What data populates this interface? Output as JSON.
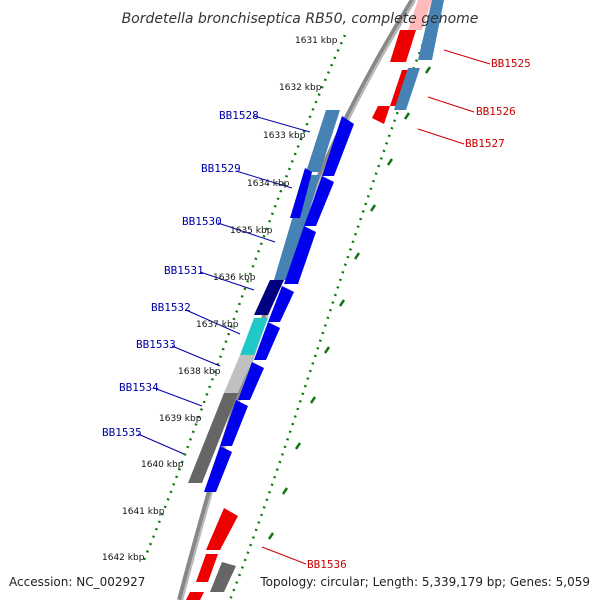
{
  "title": "Bordetella bronchiseptica RB50, complete genome",
  "footer": {
    "accession": "Accession: NC_002927",
    "summary": "Topology: circular; Length: 5,339,179 bp; Genes: 5,059"
  },
  "ticks": [
    "1631 kbp",
    "1632 kbp",
    "1633 kbp",
    "1634 kbp",
    "1635 kbp",
    "1636 kbp",
    "1637 kbp",
    "1638 kbp",
    "1639 kbp",
    "1640 kbp",
    "1641 kbp",
    "1642 kbp"
  ],
  "genes_left": [
    "BB1528",
    "BB1529",
    "BB1530",
    "BB1531",
    "BB1532",
    "BB1533",
    "BB1534",
    "BB1535"
  ],
  "genes_right": [
    "BB1525",
    "BB1526",
    "BB1527",
    "BB1536"
  ],
  "colors": {
    "label_left": "#0000aa",
    "label_right": "#cc0000",
    "backbone": "#888888",
    "dots": "#117711",
    "feature_blue": "#0000ee",
    "feature_red": "#ee0000",
    "feature_steel": "#4682b4",
    "feature_navy": "#000080",
    "feature_cyan": "#20c8c8",
    "feature_silver": "#c0c0c0",
    "feature_gray": "#666666"
  }
}
